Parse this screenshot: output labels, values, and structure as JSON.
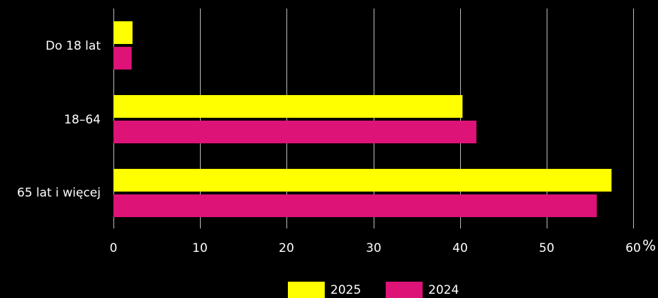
{
  "chart_data": {
    "type": "bar",
    "orientation": "horizontal",
    "categories": [
      "Do 18 lat",
      "18–64",
      "65 lat i więcej"
    ],
    "series": [
      {
        "name": "2025",
        "color": "#ffff00",
        "values": [
          2.2,
          40.3,
          57.5
        ]
      },
      {
        "name": "2024",
        "color": "#dd1377",
        "values": [
          2.1,
          41.9,
          55.8
        ]
      }
    ],
    "x_ticks": [
      "0",
      "10",
      "20",
      "30",
      "40",
      "50",
      "60"
    ],
    "xlim": [
      0,
      60
    ],
    "x_unit": "%",
    "grid": "vertical",
    "legend_position": "bottom-center"
  }
}
